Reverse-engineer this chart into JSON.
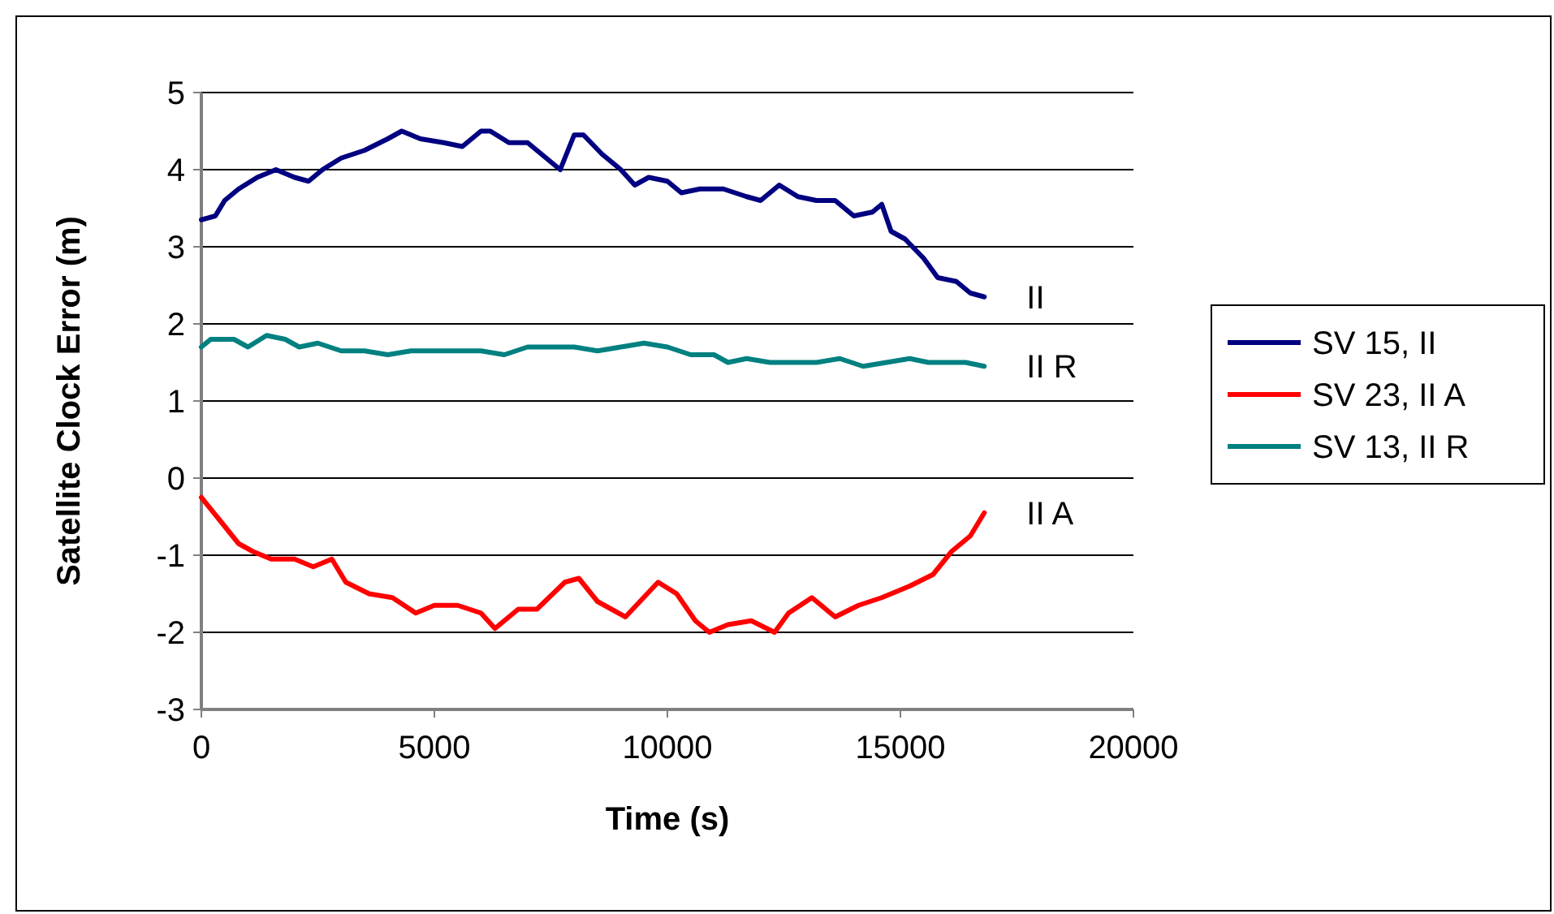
{
  "chart_data": {
    "type": "line",
    "xlabel": "Time (s)",
    "ylabel": "Satellite Clock Error (m)",
    "xlim": [
      0,
      20000
    ],
    "xticks": [
      0,
      5000,
      10000,
      15000,
      20000
    ],
    "ylim": [
      -3,
      5
    ],
    "yticks": [
      -3,
      -2,
      -1,
      0,
      1,
      2,
      3,
      4,
      5
    ],
    "grid": "y",
    "legend": "right",
    "marker": "none",
    "line_style": "solid",
    "series": [
      {
        "name": "SV 15, II",
        "color": "#000080",
        "x": [
          0,
          300,
          500,
          800,
          1200,
          1600,
          2000,
          2300,
          2600,
          3000,
          3500,
          4000,
          4300,
          4700,
          5200,
          5600,
          6000,
          6200,
          6600,
          7000,
          7500,
          7700,
          8000,
          8200,
          8600,
          9000,
          9300,
          9600,
          10000,
          10300,
          10700,
          11200,
          11700,
          12000,
          12400,
          12800,
          13200,
          13600,
          14000,
          14400,
          14600,
          14800,
          15100,
          15500,
          15800,
          16200,
          16500,
          16800
        ],
        "values": [
          3.35,
          3.4,
          3.6,
          3.75,
          3.9,
          4.0,
          3.9,
          3.85,
          4.0,
          4.15,
          4.25,
          4.4,
          4.5,
          4.4,
          4.35,
          4.3,
          4.5,
          4.5,
          4.35,
          4.35,
          4.1,
          4.0,
          4.45,
          4.45,
          4.2,
          4.0,
          3.8,
          3.9,
          3.85,
          3.7,
          3.75,
          3.75,
          3.65,
          3.6,
          3.8,
          3.65,
          3.6,
          3.6,
          3.4,
          3.45,
          3.55,
          3.2,
          3.1,
          2.85,
          2.6,
          2.55,
          2.4,
          2.35
        ]
      },
      {
        "name": "SV 23, II A",
        "color": "#ff0000",
        "x": [
          0,
          400,
          800,
          1100,
          1500,
          2000,
          2400,
          2800,
          3100,
          3600,
          4100,
          4600,
          5000,
          5500,
          6000,
          6300,
          6800,
          7200,
          7800,
          8100,
          8500,
          9100,
          9800,
          10200,
          10600,
          10900,
          11300,
          11800,
          12300,
          12600,
          13100,
          13600,
          14100,
          14600,
          15200,
          15700,
          16100,
          16500,
          16800
        ],
        "values": [
          -0.25,
          -0.55,
          -0.85,
          -0.95,
          -1.05,
          -1.05,
          -1.15,
          -1.05,
          -1.35,
          -1.5,
          -1.55,
          -1.75,
          -1.65,
          -1.65,
          -1.75,
          -1.95,
          -1.7,
          -1.7,
          -1.35,
          -1.3,
          -1.6,
          -1.8,
          -1.35,
          -1.5,
          -1.85,
          -2.0,
          -1.9,
          -1.85,
          -2.0,
          -1.75,
          -1.55,
          -1.8,
          -1.65,
          -1.55,
          -1.4,
          -1.25,
          -0.95,
          -0.75,
          -0.45
        ]
      },
      {
        "name": "SV 13, II R",
        "color": "#008080",
        "x": [
          0,
          200,
          700,
          1000,
          1400,
          1800,
          2100,
          2500,
          3000,
          3500,
          4000,
          4500,
          5000,
          5500,
          6000,
          6500,
          7000,
          7500,
          8000,
          8500,
          9000,
          9500,
          10000,
          10500,
          11000,
          11300,
          11700,
          12200,
          12700,
          13200,
          13700,
          14200,
          14700,
          15200,
          15600,
          16000,
          16400,
          16800
        ],
        "values": [
          1.7,
          1.8,
          1.8,
          1.7,
          1.85,
          1.8,
          1.7,
          1.75,
          1.65,
          1.65,
          1.6,
          1.65,
          1.65,
          1.65,
          1.65,
          1.6,
          1.7,
          1.7,
          1.7,
          1.65,
          1.7,
          1.75,
          1.7,
          1.6,
          1.6,
          1.5,
          1.55,
          1.5,
          1.5,
          1.5,
          1.55,
          1.45,
          1.5,
          1.55,
          1.5,
          1.5,
          1.5,
          1.45
        ]
      }
    ],
    "annotations": [
      "II",
      "II A",
      "II R"
    ]
  }
}
